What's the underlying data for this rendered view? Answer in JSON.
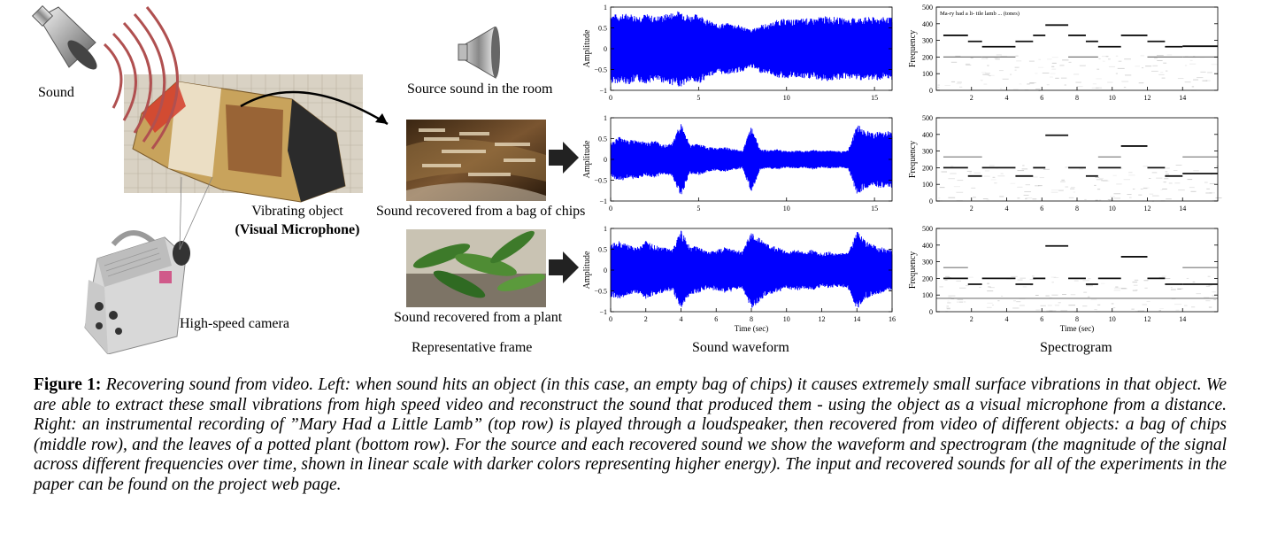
{
  "left": {
    "sound_label": "Sound",
    "object_label": "Vibrating object",
    "object_sublabel": "(Visual Microphone)",
    "camera_label": "High-speed camera"
  },
  "frames": {
    "source_label": "Source sound in the room",
    "chips_label": "Sound recovered from a bag of chips",
    "plant_label": "Sound recovered from a plant",
    "column_label": "Representative frame"
  },
  "column_labels": {
    "waveform": "Sound waveform",
    "spectrogram": "Spectrogram"
  },
  "chart_data": [
    {
      "type": "line",
      "id": "wave-source",
      "ylabel": "Amplitude",
      "xlabel": "",
      "xlim": [
        0,
        16
      ],
      "ylim": [
        -1,
        1
      ],
      "xticks": [
        0,
        5,
        10,
        15
      ],
      "yticks": [
        -1,
        -0.5,
        0,
        0.5,
        1
      ],
      "ytick_labels": [
        "−1",
        "−0.5",
        "0",
        "0.5",
        "1"
      ],
      "envelope_x": [
        0,
        0.5,
        1,
        1.5,
        2,
        2.5,
        3,
        3.5,
        4,
        4.5,
        5,
        5.5,
        6,
        6.5,
        7,
        7.5,
        8,
        8.5,
        9,
        9.5,
        10,
        10.5,
        11,
        11.5,
        12,
        12.5,
        13,
        13.5,
        14,
        14.5,
        15,
        15.5,
        16
      ],
      "envelope_y": [
        0.85,
        0.82,
        0.86,
        0.8,
        0.84,
        0.78,
        0.82,
        0.88,
        0.92,
        0.8,
        0.85,
        0.7,
        0.6,
        0.62,
        0.6,
        0.55,
        0.45,
        0.58,
        0.6,
        0.7,
        0.72,
        0.7,
        0.74,
        0.72,
        0.78,
        0.78,
        0.75,
        0.72,
        0.75,
        0.76,
        0.76,
        0.76,
        0.75
      ]
    },
    {
      "type": "line",
      "id": "wave-chips",
      "ylabel": "Amplitude",
      "xlabel": "",
      "xlim": [
        0,
        16
      ],
      "ylim": [
        -1,
        1
      ],
      "xticks": [
        0,
        5,
        10,
        15
      ],
      "yticks": [
        -1,
        -0.5,
        0,
        0.5,
        1
      ],
      "ytick_labels": [
        "−1",
        "−0.5",
        "0",
        "0.5",
        "1"
      ],
      "envelope_x": [
        0,
        0.5,
        1,
        1.5,
        2,
        2.5,
        3,
        3.5,
        4,
        4.5,
        5,
        5.5,
        6,
        6.5,
        7,
        7.5,
        8,
        8.5,
        9,
        9.5,
        10,
        10.5,
        11,
        11.5,
        12,
        12.5,
        13,
        13.5,
        14,
        14.5,
        15,
        15.5,
        16
      ],
      "envelope_y": [
        0.4,
        0.55,
        0.45,
        0.5,
        0.4,
        0.45,
        0.35,
        0.4,
        0.9,
        0.35,
        0.38,
        0.3,
        0.28,
        0.3,
        0.25,
        0.22,
        0.8,
        0.25,
        0.22,
        0.25,
        0.2,
        0.22,
        0.2,
        0.25,
        0.2,
        0.22,
        0.2,
        0.22,
        0.85,
        0.7,
        0.65,
        0.7,
        0.68
      ]
    },
    {
      "type": "line",
      "id": "wave-plant",
      "ylabel": "Amplitude",
      "xlabel": "Time (sec)",
      "xlim": [
        0,
        16
      ],
      "ylim": [
        -1,
        1
      ],
      "xticks": [
        0,
        2,
        4,
        6,
        8,
        10,
        12,
        14,
        16
      ],
      "yticks": [
        -1,
        -0.5,
        0,
        0.5,
        1
      ],
      "ytick_labels": [
        "−1",
        "−0.5",
        "0",
        "0.5",
        "1"
      ],
      "envelope_x": [
        0,
        0.5,
        1,
        1.5,
        2,
        2.5,
        3,
        3.5,
        4,
        4.5,
        5,
        5.5,
        6,
        6.5,
        7,
        7.5,
        8,
        8.5,
        9,
        9.5,
        10,
        10.5,
        11,
        11.5,
        12,
        12.5,
        13,
        13.5,
        14,
        14.5,
        15,
        15.5,
        16
      ],
      "envelope_y": [
        0.65,
        0.7,
        0.6,
        0.55,
        0.7,
        0.6,
        0.55,
        0.5,
        0.95,
        0.6,
        0.55,
        0.45,
        0.5,
        0.55,
        0.5,
        0.45,
        0.95,
        0.75,
        0.6,
        0.55,
        0.45,
        0.5,
        0.45,
        0.5,
        0.4,
        0.45,
        0.4,
        0.45,
        0.95,
        0.7,
        0.6,
        0.55,
        0.5
      ]
    },
    {
      "type": "heatmap",
      "id": "spec-source",
      "ylabel": "Frequency",
      "xlabel": "",
      "annotation": "Ma-ry had a   li-  ttle lamb ...   (tones)",
      "xlim": [
        0,
        16
      ],
      "ylim": [
        0,
        500
      ],
      "xticks": [
        2,
        4,
        6,
        8,
        10,
        12,
        14
      ],
      "yticks": [
        0,
        100,
        200,
        300,
        400,
        500
      ],
      "note_segments": [
        [
          0.4,
          1.8,
          330
        ],
        [
          1.8,
          2.6,
          294
        ],
        [
          2.6,
          4.5,
          262
        ],
        [
          4.5,
          5.5,
          294
        ],
        [
          5.5,
          6.2,
          330
        ],
        [
          6.2,
          7.5,
          392
        ],
        [
          7.5,
          8.5,
          330
        ],
        [
          8.5,
          9.2,
          294
        ],
        [
          9.2,
          10.5,
          262
        ],
        [
          10.5,
          12,
          330
        ],
        [
          12,
          13,
          294
        ],
        [
          13,
          14,
          262
        ],
        [
          14,
          16,
          265
        ]
      ],
      "harmonic_segments": [
        [
          0.4,
          2.6,
          200
        ],
        [
          2.6,
          4.5,
          200
        ],
        [
          7.5,
          9.2,
          200
        ],
        [
          12,
          14,
          200
        ],
        [
          14,
          16,
          200
        ]
      ]
    },
    {
      "type": "heatmap",
      "id": "spec-chips",
      "ylabel": "Frequency",
      "xlabel": "",
      "xlim": [
        0,
        16
      ],
      "ylim": [
        0,
        500
      ],
      "xticks": [
        2,
        4,
        6,
        8,
        10,
        12,
        14
      ],
      "yticks": [
        0,
        100,
        200,
        300,
        400,
        500
      ],
      "note_segments": [
        [
          0.4,
          1.8,
          200
        ],
        [
          1.8,
          2.6,
          150
        ],
        [
          2.6,
          4.5,
          200
        ],
        [
          4.5,
          5.5,
          150
        ],
        [
          5.5,
          6.2,
          200
        ],
        [
          6.2,
          7.5,
          395
        ],
        [
          7.5,
          8.5,
          200
        ],
        [
          8.5,
          9.2,
          150
        ],
        [
          9.2,
          10.5,
          200
        ],
        [
          10.5,
          12,
          330
        ],
        [
          12,
          13,
          200
        ],
        [
          13,
          14,
          150
        ],
        [
          14,
          16,
          165
        ]
      ],
      "harmonic_segments": [
        [
          0.4,
          2.6,
          265
        ],
        [
          9.2,
          10.5,
          265
        ],
        [
          14,
          16,
          265
        ]
      ]
    },
    {
      "type": "heatmap",
      "id": "spec-plant",
      "ylabel": "Frequency",
      "xlabel": "Time (sec)",
      "xlim": [
        0,
        16
      ],
      "ylim": [
        0,
        500
      ],
      "xticks": [
        2,
        4,
        6,
        8,
        10,
        12,
        14
      ],
      "yticks": [
        0,
        100,
        200,
        300,
        400,
        500
      ],
      "note_segments": [
        [
          0.4,
          1.8,
          200
        ],
        [
          1.8,
          2.6,
          165
        ],
        [
          2.6,
          4.5,
          200
        ],
        [
          4.5,
          5.5,
          165
        ],
        [
          5.5,
          6.2,
          200
        ],
        [
          6.2,
          7.5,
          395
        ],
        [
          7.5,
          8.5,
          200
        ],
        [
          8.5,
          9.2,
          165
        ],
        [
          9.2,
          10.5,
          200
        ],
        [
          10.5,
          12,
          330
        ],
        [
          12,
          13,
          200
        ],
        [
          13,
          14,
          165
        ],
        [
          14,
          16,
          165
        ]
      ],
      "harmonic_segments": [
        [
          0.4,
          1.8,
          265
        ],
        [
          14,
          16,
          265
        ],
        [
          0,
          16,
          80
        ]
      ]
    }
  ],
  "caption": {
    "label": "Figure 1:",
    "text": "Recovering sound from video. Left: when sound hits an object (in this case, an empty bag of chips) it causes extremely small surface vibrations in that object. We are able to extract these small vibrations from high speed video and reconstruct the sound that produced them - using the object as a visual microphone from a distance. Right: an instrumental recording of ”Mary Had a Little Lamb” (top row) is played through a loudspeaker, then recovered from video of different objects: a bag of chips (middle row), and the leaves of a potted plant (bottom row). For the source and each recovered sound we show the waveform and spectrogram (the magnitude of the signal across different frequencies over time, shown in linear scale with darker colors representing higher energy). The input and recovered sounds for all of the experiments in the paper can be found on the project web page."
  }
}
